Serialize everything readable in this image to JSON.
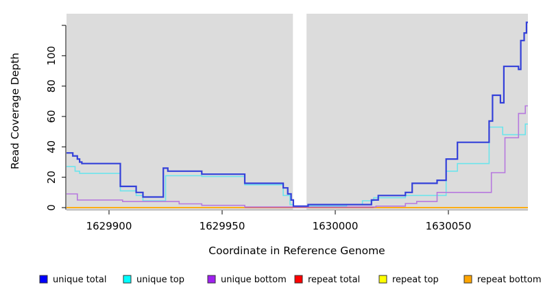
{
  "figure": {
    "plot_bg": "#dcdcdc",
    "outer_bg": "#ffffff",
    "gap_color": "#ffffff",
    "axis_color": "#000000"
  },
  "axes": {
    "x": {
      "label": "Coordinate in Reference Genome",
      "ticks": [
        1629900,
        1629950,
        1630000,
        1630050
      ],
      "tick_labels": [
        "1629900",
        "1629950",
        "1630000",
        "1630050"
      ],
      "range": [
        1629881,
        1630085.3
      ]
    },
    "y": {
      "label": "Read Coverage Depth",
      "ticks": [
        0,
        20,
        40,
        60,
        80,
        100,
        120
      ],
      "tick_labels": [
        "0",
        "20",
        "40",
        "60",
        "80",
        "100",
        ""
      ],
      "range": [
        0,
        129
      ]
    }
  },
  "chart_data": {
    "type": "line",
    "step": "after",
    "title": "",
    "xlabel": "Coordinate in Reference Genome",
    "ylabel": "Read Coverage Depth",
    "xlim": [
      1629881,
      1630085.3
    ],
    "ylim": [
      0,
      129
    ],
    "grid": false,
    "legend_position": "bottom",
    "gap_region": {
      "x_start": 1629981.3,
      "x_end": 1629987.3
    },
    "series": [
      {
        "name": "unique total",
        "color": "#3340d9",
        "width": 2.2,
        "z": 6,
        "points": [
          [
            1629881,
            36
          ],
          [
            1629884,
            34
          ],
          [
            1629886,
            32
          ],
          [
            1629887,
            30
          ],
          [
            1629888,
            29
          ],
          [
            1629905,
            14
          ],
          [
            1629912,
            10
          ],
          [
            1629915,
            7
          ],
          [
            1629924,
            26
          ],
          [
            1629926,
            24
          ],
          [
            1629941,
            22
          ],
          [
            1629960,
            16
          ],
          [
            1629977,
            13
          ],
          [
            1629979,
            9
          ],
          [
            1629980.5,
            5
          ],
          [
            1629981.5,
            1
          ],
          [
            1629988,
            2
          ],
          [
            1630016,
            5
          ],
          [
            1630019,
            8
          ],
          [
            1630031,
            10
          ],
          [
            1630034,
            16
          ],
          [
            1630045,
            18
          ],
          [
            1630049,
            32
          ],
          [
            1630054,
            43
          ],
          [
            1630068,
            57
          ],
          [
            1630069.5,
            74
          ],
          [
            1630073,
            69
          ],
          [
            1630074.5,
            93
          ],
          [
            1630081,
            91
          ],
          [
            1630082,
            110
          ],
          [
            1630083.5,
            115
          ],
          [
            1630084.5,
            122
          ],
          [
            1630085.3,
            122
          ]
        ]
      },
      {
        "name": "unique top",
        "color": "#6ce4ec",
        "width": 1.6,
        "z": 3,
        "points": [
          [
            1629881,
            27
          ],
          [
            1629885,
            24
          ],
          [
            1629887,
            22.5
          ],
          [
            1629905,
            11
          ],
          [
            1629912,
            8
          ],
          [
            1629915,
            4.5
          ],
          [
            1629925,
            21
          ],
          [
            1629941,
            20.5
          ],
          [
            1629960,
            15
          ],
          [
            1629977,
            8
          ],
          [
            1629980,
            2
          ],
          [
            1629981.5,
            0
          ],
          [
            1629988,
            1
          ],
          [
            1630005,
            2
          ],
          [
            1630012,
            4.5
          ],
          [
            1630017,
            6.5
          ],
          [
            1630031,
            8
          ],
          [
            1630049,
            24
          ],
          [
            1630054,
            29
          ],
          [
            1630068,
            53
          ],
          [
            1630074,
            48
          ],
          [
            1630084,
            55
          ],
          [
            1630085.3,
            55
          ]
        ]
      },
      {
        "name": "unique bottom",
        "color": "#b678de",
        "width": 1.6,
        "z": 4,
        "points": [
          [
            1629881,
            9
          ],
          [
            1629886,
            5
          ],
          [
            1629906,
            4
          ],
          [
            1629931,
            2.5
          ],
          [
            1629941,
            1.5
          ],
          [
            1629960,
            0.4
          ],
          [
            1630018,
            1
          ],
          [
            1630031,
            2.7
          ],
          [
            1630036,
            4
          ],
          [
            1630045,
            10
          ],
          [
            1630069,
            23
          ],
          [
            1630075,
            46
          ],
          [
            1630081,
            62
          ],
          [
            1630084,
            67
          ],
          [
            1630085.3,
            67
          ]
        ]
      },
      {
        "name": "repeat total",
        "color": "#cf6583",
        "width": 1.3,
        "z": 5,
        "points": [
          [
            1629960,
            0
          ],
          [
            1630017,
            0
          ]
        ]
      },
      {
        "name": "repeat top",
        "color": "#ffff00",
        "width": 1.3,
        "z": 1,
        "points": [
          [
            1629881,
            0
          ],
          [
            1630085.3,
            0
          ]
        ]
      },
      {
        "name": "repeat bottom",
        "color": "#ffa500",
        "width": 1.8,
        "z": 2,
        "points": [
          [
            1629881,
            0
          ],
          [
            1630085.3,
            0
          ]
        ]
      }
    ],
    "legend": [
      {
        "label": "unique total",
        "color": "#0000ff"
      },
      {
        "label": "unique top",
        "color": "#00ffff"
      },
      {
        "label": "unique bottom",
        "color": "#a020f0"
      },
      {
        "label": "repeat total",
        "color": "#ff0000"
      },
      {
        "label": "repeat top",
        "color": "#ffff00"
      },
      {
        "label": "repeat bottom",
        "color": "#ffa500"
      }
    ]
  }
}
